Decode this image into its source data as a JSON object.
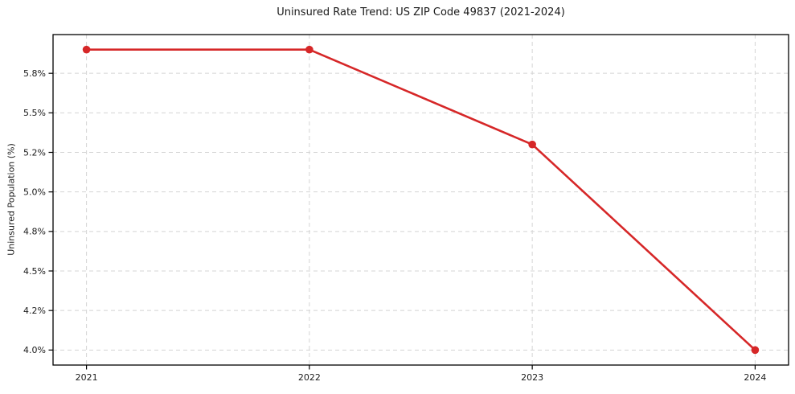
{
  "chart_data": {
    "type": "line",
    "title": "Uninsured Rate Trend: US ZIP Code 49837 (2021-2024)",
    "xlabel": "",
    "ylabel": "Uninsured Population (%)",
    "x": [
      2021,
      2022,
      2023,
      2024
    ],
    "series": [
      {
        "name": "Uninsured rate",
        "values": [
          5.9,
          5.9,
          5.3,
          4.0
        ]
      }
    ],
    "x_ticks": [
      {
        "value": 2021,
        "label": "2021"
      },
      {
        "value": 2022,
        "label": "2022"
      },
      {
        "value": 2023,
        "label": "2023"
      },
      {
        "value": 2024,
        "label": "2024"
      }
    ],
    "y_ticks": [
      {
        "value": 4.0,
        "label": "4.0%"
      },
      {
        "value": 4.25,
        "label": "4.2%"
      },
      {
        "value": 4.5,
        "label": "4.5%"
      },
      {
        "value": 4.75,
        "label": "4.8%"
      },
      {
        "value": 5.0,
        "label": "5.0%"
      },
      {
        "value": 5.25,
        "label": "5.2%"
      },
      {
        "value": 5.5,
        "label": "5.5%"
      },
      {
        "value": 5.75,
        "label": "5.8%"
      }
    ],
    "xlim": [
      2020.85,
      2024.15
    ],
    "ylim": [
      3.905,
      5.995
    ],
    "grid": true,
    "grid_style": "dashed",
    "legend": "none",
    "marker": "circle",
    "colors": {
      "line": "#d62728",
      "grid": "#d4d4d4",
      "frame": "#000000",
      "text": "#1a1a1a",
      "background": "#ffffff"
    }
  }
}
